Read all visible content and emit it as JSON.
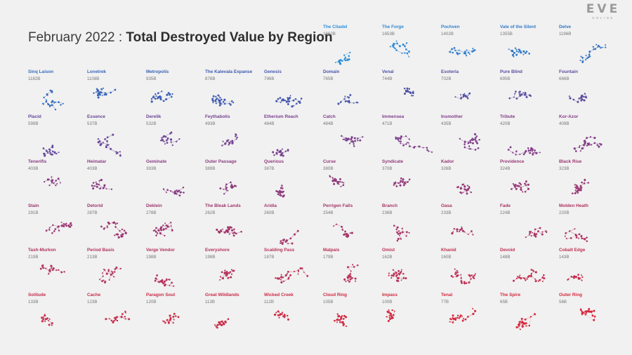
{
  "logo": {
    "main": "EVE",
    "sub": "ONLINE"
  },
  "title": {
    "period": "February 2022 :",
    "main": "Total Destroyed Value by Region"
  },
  "colors": {
    "high": "#2f8fd8",
    "mid": "#7a3f8f",
    "low": "#d8283c"
  },
  "regions": [
    {
      "name": "The Citadel",
      "value": "1662B"
    },
    {
      "name": "The Forge",
      "value": "1653B"
    },
    {
      "name": "Pochven",
      "value": "1402B"
    },
    {
      "name": "Vale of the Silent",
      "value": "1355B"
    },
    {
      "name": "Delve",
      "value": "1196B"
    },
    {
      "name": "Sinq Laison",
      "value": "1182B"
    },
    {
      "name": "Lonetrek",
      "value": "1108B"
    },
    {
      "name": "Metropolis",
      "value": "935B"
    },
    {
      "name": "The Kalevala Expanse",
      "value": "878B"
    },
    {
      "name": "Genesis",
      "value": "796B"
    },
    {
      "name": "Domain",
      "value": "765B"
    },
    {
      "name": "Venal",
      "value": "744B"
    },
    {
      "name": "Esoteria",
      "value": "702B"
    },
    {
      "name": "Pure Blind",
      "value": "695B"
    },
    {
      "name": "Fountain",
      "value": "666B"
    },
    {
      "name": "Placid",
      "value": "599B"
    },
    {
      "name": "Essence",
      "value": "537B"
    },
    {
      "name": "Derelik",
      "value": "532B"
    },
    {
      "name": "Feythabolis",
      "value": "493B"
    },
    {
      "name": "Etherium Reach",
      "value": "484B"
    },
    {
      "name": "Catch",
      "value": "484B"
    },
    {
      "name": "Immensea",
      "value": "471B"
    },
    {
      "name": "Insmother",
      "value": "435B"
    },
    {
      "name": "Tribute",
      "value": "420B"
    },
    {
      "name": "Kor-Azor",
      "value": "409B"
    },
    {
      "name": "Tenerifis",
      "value": "403B"
    },
    {
      "name": "Heimatar",
      "value": "403B"
    },
    {
      "name": "Geminate",
      "value": "393B"
    },
    {
      "name": "Outer Passage",
      "value": "389B"
    },
    {
      "name": "Querious",
      "value": "387B"
    },
    {
      "name": "Curse",
      "value": "380B"
    },
    {
      "name": "Syndicate",
      "value": "370B"
    },
    {
      "name": "Kador",
      "value": "326B"
    },
    {
      "name": "Providence",
      "value": "324B"
    },
    {
      "name": "Black Rise",
      "value": "323B"
    },
    {
      "name": "Stain",
      "value": "291B"
    },
    {
      "name": "Detorid",
      "value": "287B"
    },
    {
      "name": "Deklein",
      "value": "278B"
    },
    {
      "name": "The Bleak Lands",
      "value": "262B"
    },
    {
      "name": "Aridia",
      "value": "260B"
    },
    {
      "name": "Perrigen Falls",
      "value": "254B"
    },
    {
      "name": "Branch",
      "value": "236B"
    },
    {
      "name": "Oasa",
      "value": "233B"
    },
    {
      "name": "Fade",
      "value": "224B"
    },
    {
      "name": "Molden Heath",
      "value": "220B"
    },
    {
      "name": "Tash-Murkon",
      "value": "219B"
    },
    {
      "name": "Period Basis",
      "value": "213B"
    },
    {
      "name": "Verge Vendor",
      "value": "198B"
    },
    {
      "name": "Everyshore",
      "value": "198B"
    },
    {
      "name": "Scalding Pass",
      "value": "187B"
    },
    {
      "name": "Malpais",
      "value": "179B"
    },
    {
      "name": "Omist",
      "value": "162B"
    },
    {
      "name": "Khanid",
      "value": "160B"
    },
    {
      "name": "Devoid",
      "value": "148B"
    },
    {
      "name": "Cobalt Edge",
      "value": "143B"
    },
    {
      "name": "Solitude",
      "value": "133B"
    },
    {
      "name": "Cache",
      "value": "123B"
    },
    {
      "name": "Paragon Soul",
      "value": "120B"
    },
    {
      "name": "Great Wildlands",
      "value": "113B"
    },
    {
      "name": "Wicked Creek",
      "value": "112B"
    },
    {
      "name": "Cloud Ring",
      "value": "105B"
    },
    {
      "name": "Impass",
      "value": "100B"
    },
    {
      "name": "Tenal",
      "value": "77B"
    },
    {
      "name": "The Spire",
      "value": "65B"
    },
    {
      "name": "Outer Ring",
      "value": "56B"
    }
  ]
}
